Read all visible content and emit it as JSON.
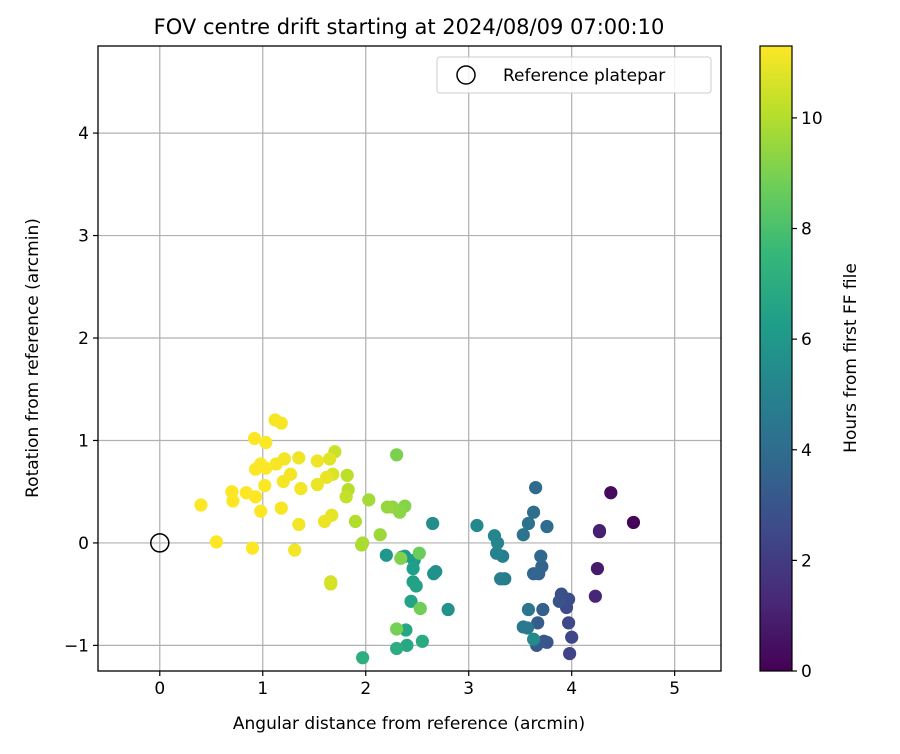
{
  "chart_data": {
    "type": "scatter",
    "title": "FOV centre drift starting at 2024/08/09 07:00:10",
    "xlabel": "Angular distance from reference (arcmin)",
    "ylabel": "Rotation from reference (arcmin)",
    "xlim": [
      -0.6,
      5.45
    ],
    "ylim": [
      -1.25,
      4.85
    ],
    "xticks": [
      0,
      1,
      2,
      3,
      4,
      5
    ],
    "yticks": [
      -1,
      0,
      1,
      2,
      3,
      4
    ],
    "grid": true,
    "legend": {
      "position": "top-right",
      "entries": [
        {
          "label": "Reference platepar",
          "marker": "open-circle"
        }
      ]
    },
    "reference_point": {
      "x": 0,
      "y": 0
    },
    "colorbar": {
      "label": "Hours from first FF file",
      "colormap": "viridis",
      "range": [
        0,
        11.3
      ],
      "ticks": [
        0,
        2,
        4,
        6,
        8,
        10
      ],
      "stops": [
        "#440154",
        "#482878",
        "#3e4989",
        "#31688e",
        "#26828e",
        "#1f9e89",
        "#35b779",
        "#6ece58",
        "#b5de2b",
        "#fde725"
      ]
    },
    "points": [
      {
        "x": 4.6,
        "y": 0.2,
        "t": 0.1
      },
      {
        "x": 4.38,
        "y": 0.49,
        "t": 0.3
      },
      {
        "x": 4.27,
        "y": 0.11,
        "t": 0.7
      },
      {
        "x": 4.25,
        "y": -0.25,
        "t": 0.8
      },
      {
        "x": 4.27,
        "y": 0.12,
        "t": 1.0
      },
      {
        "x": 4.23,
        "y": -0.52,
        "t": 1.2
      },
      {
        "x": 3.98,
        "y": -1.08,
        "t": 2.3
      },
      {
        "x": 4.0,
        "y": -0.92,
        "t": 2.4
      },
      {
        "x": 3.97,
        "y": -0.78,
        "t": 2.5
      },
      {
        "x": 3.95,
        "y": -0.63,
        "t": 2.6
      },
      {
        "x": 3.97,
        "y": -0.55,
        "t": 2.7
      },
      {
        "x": 3.9,
        "y": -0.5,
        "t": 2.8
      },
      {
        "x": 3.88,
        "y": -0.57,
        "t": 2.9
      },
      {
        "x": 3.76,
        "y": -0.97,
        "t": 3.0
      },
      {
        "x": 3.73,
        "y": -0.96,
        "t": 3.1
      },
      {
        "x": 3.66,
        "y": -1.0,
        "t": 3.2
      },
      {
        "x": 3.67,
        "y": -0.78,
        "t": 3.3
      },
      {
        "x": 3.72,
        "y": -0.65,
        "t": 3.4
      },
      {
        "x": 3.68,
        "y": -0.3,
        "t": 3.5
      },
      {
        "x": 3.71,
        "y": -0.23,
        "t": 3.6
      },
      {
        "x": 3.63,
        "y": -0.3,
        "t": 3.7
      },
      {
        "x": 3.7,
        "y": -0.13,
        "t": 3.8
      },
      {
        "x": 3.65,
        "y": 0.54,
        "t": 3.9
      },
      {
        "x": 3.76,
        "y": 0.16,
        "t": 4.0
      },
      {
        "x": 3.63,
        "y": 0.3,
        "t": 4.1
      },
      {
        "x": 3.58,
        "y": 0.19,
        "t": 4.2
      },
      {
        "x": 3.53,
        "y": 0.08,
        "t": 4.3
      },
      {
        "x": 3.58,
        "y": -0.65,
        "t": 4.4
      },
      {
        "x": 3.53,
        "y": -0.82,
        "t": 4.5
      },
      {
        "x": 3.57,
        "y": -0.83,
        "t": 4.6
      },
      {
        "x": 3.35,
        "y": -0.35,
        "t": 4.7
      },
      {
        "x": 3.31,
        "y": -0.35,
        "t": 4.8
      },
      {
        "x": 3.33,
        "y": -0.13,
        "t": 4.9
      },
      {
        "x": 3.27,
        "y": -0.1,
        "t": 5.0
      },
      {
        "x": 3.28,
        "y": 0.0,
        "t": 5.1
      },
      {
        "x": 3.25,
        "y": 0.07,
        "t": 5.2
      },
      {
        "x": 3.08,
        "y": 0.17,
        "t": 5.3
      },
      {
        "x": 3.63,
        "y": -0.94,
        "t": 5.4
      },
      {
        "x": 2.65,
        "y": 0.19,
        "t": 5.5
      },
      {
        "x": 2.68,
        "y": -0.28,
        "t": 5.6
      },
      {
        "x": 2.66,
        "y": -0.3,
        "t": 5.7
      },
      {
        "x": 2.8,
        "y": -0.65,
        "t": 5.8
      },
      {
        "x": 2.2,
        "y": -0.12,
        "t": 5.9
      },
      {
        "x": 2.38,
        "y": -0.13,
        "t": 6.0
      },
      {
        "x": 2.35,
        "y": -0.14,
        "t": 6.1
      },
      {
        "x": 2.47,
        "y": -0.17,
        "t": 6.2
      },
      {
        "x": 2.46,
        "y": -0.25,
        "t": 6.3
      },
      {
        "x": 2.46,
        "y": -0.38,
        "t": 6.4
      },
      {
        "x": 2.49,
        "y": -0.42,
        "t": 6.5
      },
      {
        "x": 2.44,
        "y": -0.57,
        "t": 6.6
      },
      {
        "x": 2.39,
        "y": -0.85,
        "t": 6.7
      },
      {
        "x": 2.4,
        "y": -1.0,
        "t": 6.8
      },
      {
        "x": 2.55,
        "y": -0.96,
        "t": 6.9
      },
      {
        "x": 2.3,
        "y": -1.03,
        "t": 7.0
      },
      {
        "x": 1.97,
        "y": -1.12,
        "t": 7.1
      },
      {
        "x": 2.52,
        "y": -0.1,
        "t": 8.7
      },
      {
        "x": 2.53,
        "y": -0.64,
        "t": 8.8
      },
      {
        "x": 2.3,
        "y": -0.84,
        "t": 8.9
      },
      {
        "x": 2.3,
        "y": 0.86,
        "t": 9.0
      },
      {
        "x": 2.34,
        "y": -0.15,
        "t": 9.1
      },
      {
        "x": 2.38,
        "y": 0.36,
        "t": 9.2
      },
      {
        "x": 2.33,
        "y": 0.3,
        "t": 9.3
      },
      {
        "x": 2.26,
        "y": 0.35,
        "t": 9.4
      },
      {
        "x": 2.21,
        "y": 0.35,
        "t": 9.5
      },
      {
        "x": 2.14,
        "y": 0.08,
        "t": 9.6
      },
      {
        "x": 2.03,
        "y": 0.42,
        "t": 9.7
      },
      {
        "x": 1.97,
        "y": 0.0,
        "t": 9.8
      },
      {
        "x": 1.96,
        "y": -0.02,
        "t": 9.9
      },
      {
        "x": 1.9,
        "y": 0.21,
        "t": 10.0
      },
      {
        "x": 1.83,
        "y": 0.52,
        "t": 10.1
      },
      {
        "x": 1.82,
        "y": 0.66,
        "t": 10.2
      },
      {
        "x": 1.81,
        "y": 0.45,
        "t": 10.3
      },
      {
        "x": 1.7,
        "y": 0.89,
        "t": 10.4
      },
      {
        "x": 1.66,
        "y": -0.38,
        "t": 10.5
      },
      {
        "x": 1.66,
        "y": -0.4,
        "t": 10.6
      },
      {
        "x": 1.68,
        "y": 0.67,
        "t": 10.7
      },
      {
        "x": 1.65,
        "y": 0.82,
        "t": 10.8
      },
      {
        "x": 1.67,
        "y": 0.27,
        "t": 10.9
      },
      {
        "x": 1.62,
        "y": 0.64,
        "t": 10.95
      },
      {
        "x": 1.6,
        "y": 0.21,
        "t": 11.0
      },
      {
        "x": 1.53,
        "y": 0.57,
        "t": 11.0
      },
      {
        "x": 1.53,
        "y": 0.8,
        "t": 11.05
      },
      {
        "x": 1.35,
        "y": 0.83,
        "t": 11.05
      },
      {
        "x": 1.37,
        "y": 0.53,
        "t": 11.1
      },
      {
        "x": 1.35,
        "y": 0.18,
        "t": 11.1
      },
      {
        "x": 1.31,
        "y": -0.07,
        "t": 11.1
      },
      {
        "x": 1.27,
        "y": 0.67,
        "t": 11.15
      },
      {
        "x": 1.21,
        "y": 0.82,
        "t": 11.15
      },
      {
        "x": 1.2,
        "y": 0.6,
        "t": 11.2
      },
      {
        "x": 1.18,
        "y": 0.34,
        "t": 11.2
      },
      {
        "x": 1.18,
        "y": 1.17,
        "t": 11.2
      },
      {
        "x": 1.12,
        "y": 1.2,
        "t": 11.2
      },
      {
        "x": 1.13,
        "y": 0.77,
        "t": 11.2
      },
      {
        "x": 1.03,
        "y": 0.98,
        "t": 11.25
      },
      {
        "x": 1.03,
        "y": 0.73,
        "t": 11.25
      },
      {
        "x": 1.02,
        "y": 0.56,
        "t": 11.25
      },
      {
        "x": 0.98,
        "y": 0.77,
        "t": 11.25
      },
      {
        "x": 0.93,
        "y": 0.72,
        "t": 11.25
      },
      {
        "x": 0.92,
        "y": 1.02,
        "t": 11.3
      },
      {
        "x": 0.93,
        "y": 0.45,
        "t": 11.3
      },
      {
        "x": 0.98,
        "y": 0.31,
        "t": 11.3
      },
      {
        "x": 0.84,
        "y": 0.49,
        "t": 11.3
      },
      {
        "x": 0.71,
        "y": 0.41,
        "t": 11.3
      },
      {
        "x": 0.7,
        "y": 0.5,
        "t": 11.3
      },
      {
        "x": 0.9,
        "y": -0.05,
        "t": 11.3
      },
      {
        "x": 0.55,
        "y": 0.01,
        "t": 11.3
      },
      {
        "x": 0.4,
        "y": 0.37,
        "t": 11.3
      }
    ]
  }
}
